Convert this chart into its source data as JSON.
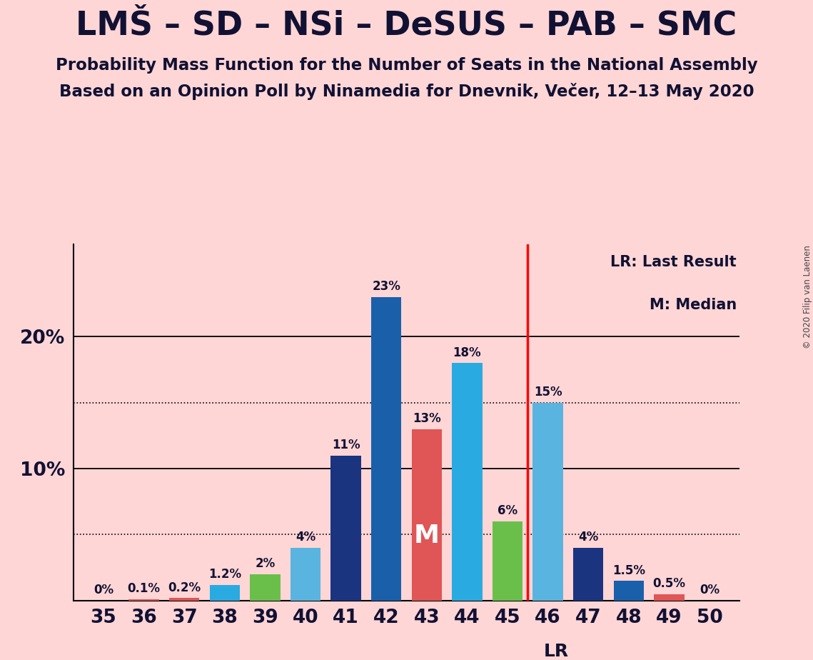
{
  "title": "LMŠ – SD – NSi – DeSUS – PAB – SMC",
  "subtitle1": "Probability Mass Function for the Number of Seats in the National Assembly",
  "subtitle2": "Based on an Opinion Poll by Ninamedia for Dnevnik, Večer, 12–13 May 2020",
  "copyright": "© 2020 Filip van Laenen",
  "seats": [
    35,
    36,
    37,
    38,
    39,
    40,
    41,
    42,
    43,
    44,
    45,
    46,
    47,
    48,
    49,
    50
  ],
  "values": [
    0.0,
    0.1,
    0.2,
    1.2,
    2.0,
    4.0,
    11.0,
    23.0,
    13.0,
    18.0,
    6.0,
    15.0,
    4.0,
    1.5,
    0.5,
    0.0
  ],
  "bar_colors": [
    "#1a3480",
    "#e05555",
    "#e05555",
    "#29abe2",
    "#6abf4b",
    "#5ab4e0",
    "#1a3480",
    "#1a5faa",
    "#e05555",
    "#29abe2",
    "#6abf4b",
    "#5ab4e0",
    "#1a3480",
    "#1a5faa",
    "#e05555",
    "#e05555"
  ],
  "background_color": "#ffd6d6",
  "lr_line_x": 45.5,
  "median_seat": 43,
  "median_label": "M",
  "legend_lr": "LR: Last Result",
  "legend_m": "M: Median",
  "lr_label": "LR",
  "major_yticks": [
    10,
    20
  ],
  "dotted_yticks": [
    5,
    15
  ],
  "title_color": "#111133",
  "ylim": [
    0,
    27
  ],
  "xlim": [
    34.25,
    50.75
  ]
}
